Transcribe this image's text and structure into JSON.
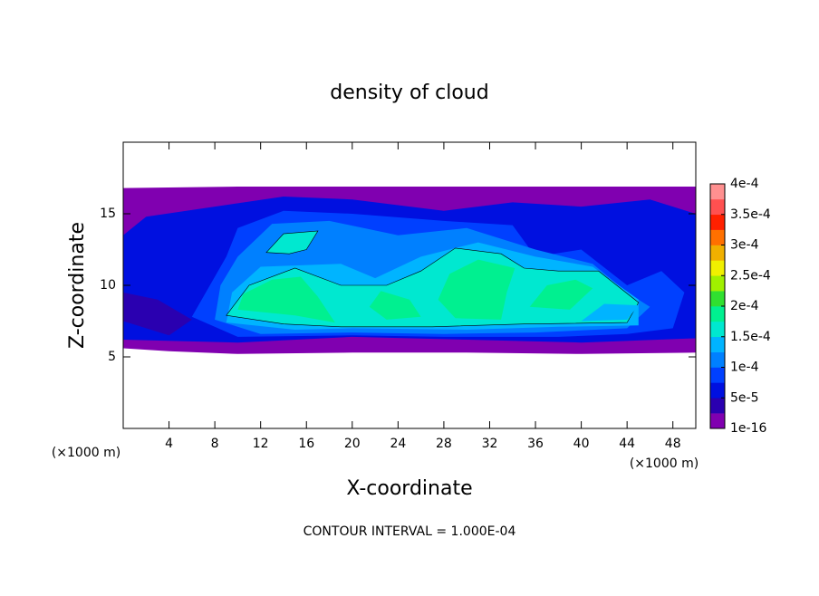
{
  "chart_data": {
    "type": "contour",
    "title": "density of cloud",
    "xlabel": "X-coordinate",
    "ylabel": "Z-coordinate",
    "x_unit": "(×1000 m)",
    "y_unit": "(×1000 m)",
    "footer": "CONTOUR INTERVAL = 1.000E-04",
    "xlim": [
      0,
      50
    ],
    "xticks": [
      4,
      8,
      12,
      16,
      20,
      24,
      28,
      32,
      36,
      40,
      44,
      48
    ],
    "ylim": [
      0,
      20
    ],
    "yticks": [
      5,
      10,
      15
    ],
    "colorbar": {
      "lim": [
        1e-16,
        0.0004
      ],
      "ticks": [
        {
          "value": 1e-16,
          "label": "1e-16"
        },
        {
          "value": 5e-05,
          "label": "5e-5"
        },
        {
          "value": 0.0001,
          "label": "1e-4"
        },
        {
          "value": 0.00015,
          "label": "1.5e-4"
        },
        {
          "value": 0.0002,
          "label": "2e-4"
        },
        {
          "value": 0.00025,
          "label": "2.5e-4"
        },
        {
          "value": 0.0003,
          "label": "3e-4"
        },
        {
          "value": 0.00035,
          "label": "3.5e-4"
        },
        {
          "value": 0.0004,
          "label": "4e-4"
        }
      ],
      "colors": [
        "#8000b0",
        "#2a00b0",
        "#0010e0",
        "#0040ff",
        "#0080ff",
        "#00b4ff",
        "#00e8d0",
        "#00f090",
        "#30e030",
        "#a0f000",
        "#f0f000",
        "#f0b000",
        "#ff7000",
        "#ff2000",
        "#ff5050",
        "#ff9090"
      ]
    }
  }
}
